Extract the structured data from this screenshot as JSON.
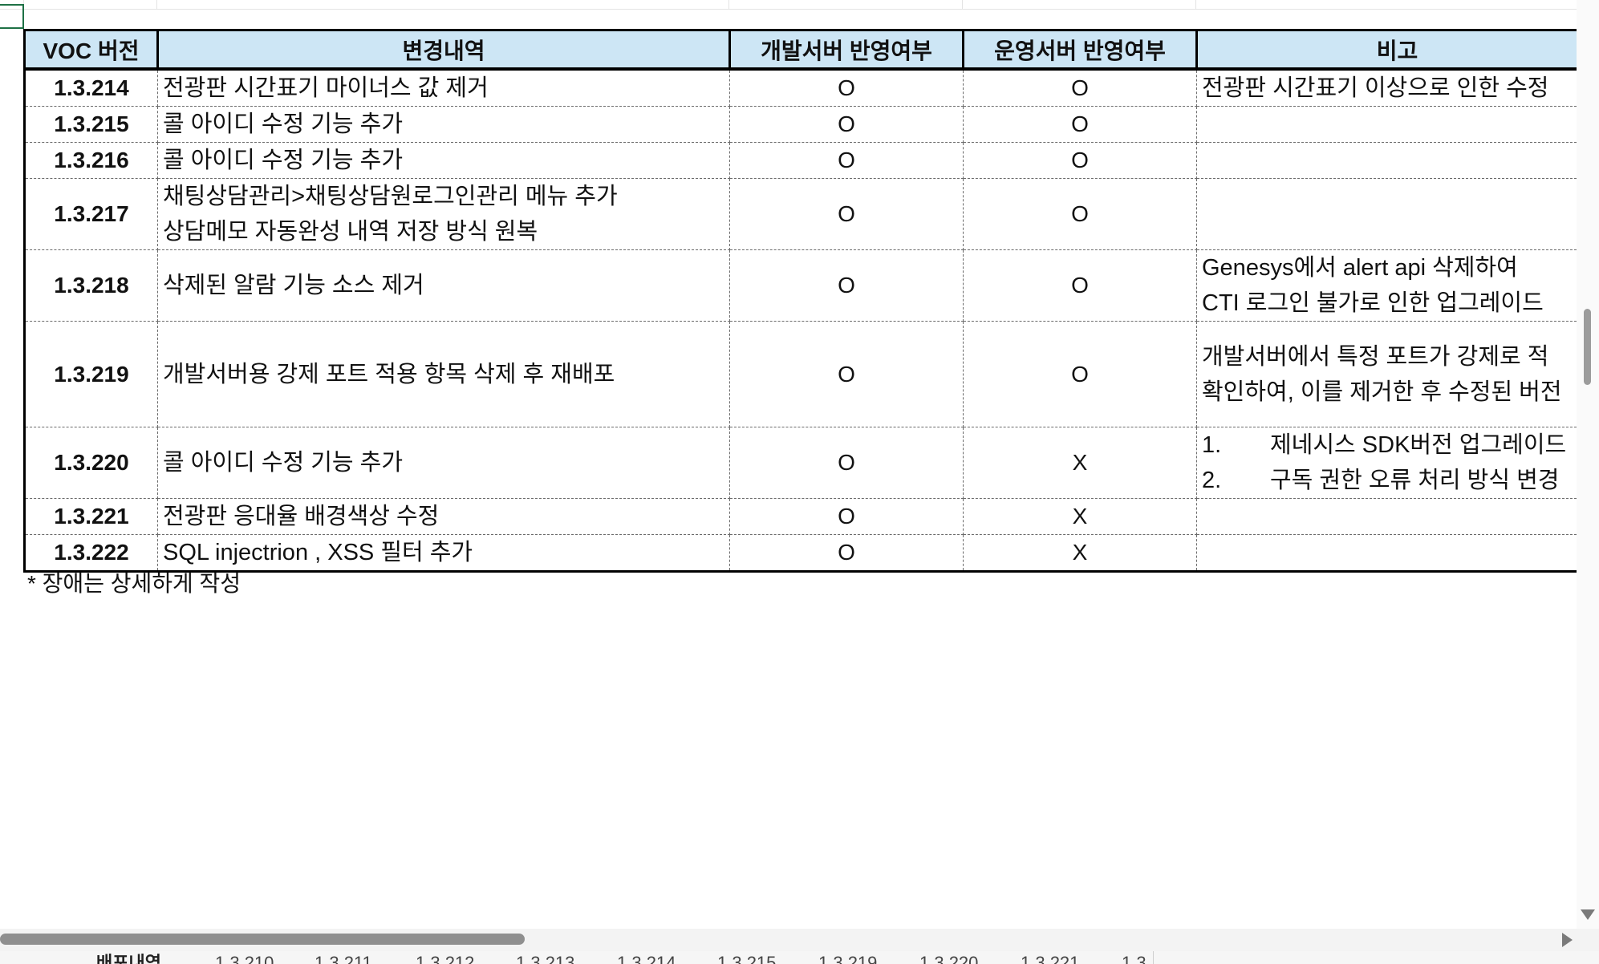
{
  "table": {
    "headers": [
      "VOC 버전",
      "변경내역",
      "개발서버 반영여부",
      "운영서버 반영여부",
      "비고"
    ],
    "rows": [
      {
        "version": "1.3.214",
        "desc": [
          "전광판 시간표기 마이너스 값 제거"
        ],
        "dev": "O",
        "prod": "O",
        "note": [
          {
            "text": "전광판 시간표기 이상으로 인한 수정"
          }
        ]
      },
      {
        "version": "1.3.215",
        "desc": [
          "콜 아이디 수정 기능 추가"
        ],
        "dev": "O",
        "prod": "O",
        "note": []
      },
      {
        "version": "1.3.216",
        "desc": [
          "콜 아이디 수정 기능 추가"
        ],
        "dev": "O",
        "prod": "O",
        "note": []
      },
      {
        "version": "1.3.217",
        "desc": [
          "채팅상담관리>채팅상담원로그인관리 메뉴 추가",
          "상담메모 자동완성 내역 저장 방식 원복"
        ],
        "dev": "O",
        "prod": "O",
        "note": []
      },
      {
        "version": "1.3.218",
        "desc": [
          "삭제된 알람 기능 소스 제거"
        ],
        "dev": "O",
        "prod": "O",
        "note": [
          {
            "text": "Genesys에서 alert api 삭제하여"
          },
          {
            "text": "CTI 로그인 불가로 인한 업그레이드"
          }
        ]
      },
      {
        "version": "1.3.219",
        "desc": [
          "개발서버용 강제 포트 적용 항목 삭제 후 재배포"
        ],
        "dev": "O",
        "prod": "O",
        "note": [
          {
            "text": "개발서버에서 특정 포트가 강제로 적"
          },
          {
            "text": "확인하여, 이를 제거한 후 수정된 버전"
          }
        ]
      },
      {
        "version": "1.3.220",
        "desc": [
          "콜 아이디 수정 기능 추가"
        ],
        "dev": "O",
        "prod": "X",
        "note": [
          {
            "num": "1.",
            "text": "제네시스 SDK버전 업그레이드"
          },
          {
            "num": "2.",
            "text": "구독 권한 오류 처리 방식 변경"
          }
        ]
      },
      {
        "version": "1.3.221",
        "desc": [
          "전광판 응대율 배경색상 수정"
        ],
        "dev": "O",
        "prod": "X",
        "note": []
      },
      {
        "version": "1.3.222",
        "desc": [
          "SQL injectrion , XSS 필터 추가"
        ],
        "dev": "O",
        "prod": "X",
        "note": []
      }
    ]
  },
  "footnote": "* 장애는 상세하게 작성",
  "sheet_tabs": [
    "배포내역",
    "1.3.210",
    "1.3.211",
    "1.3.212",
    "1.3.213",
    "1.3.214",
    "1.3.215",
    "1.3.219",
    "1.3.220",
    "1.3.221",
    "1.3"
  ],
  "colors": {
    "header_bg": "#cde6f5",
    "selection": "#1e7145",
    "grid": "#e3e3e3"
  }
}
